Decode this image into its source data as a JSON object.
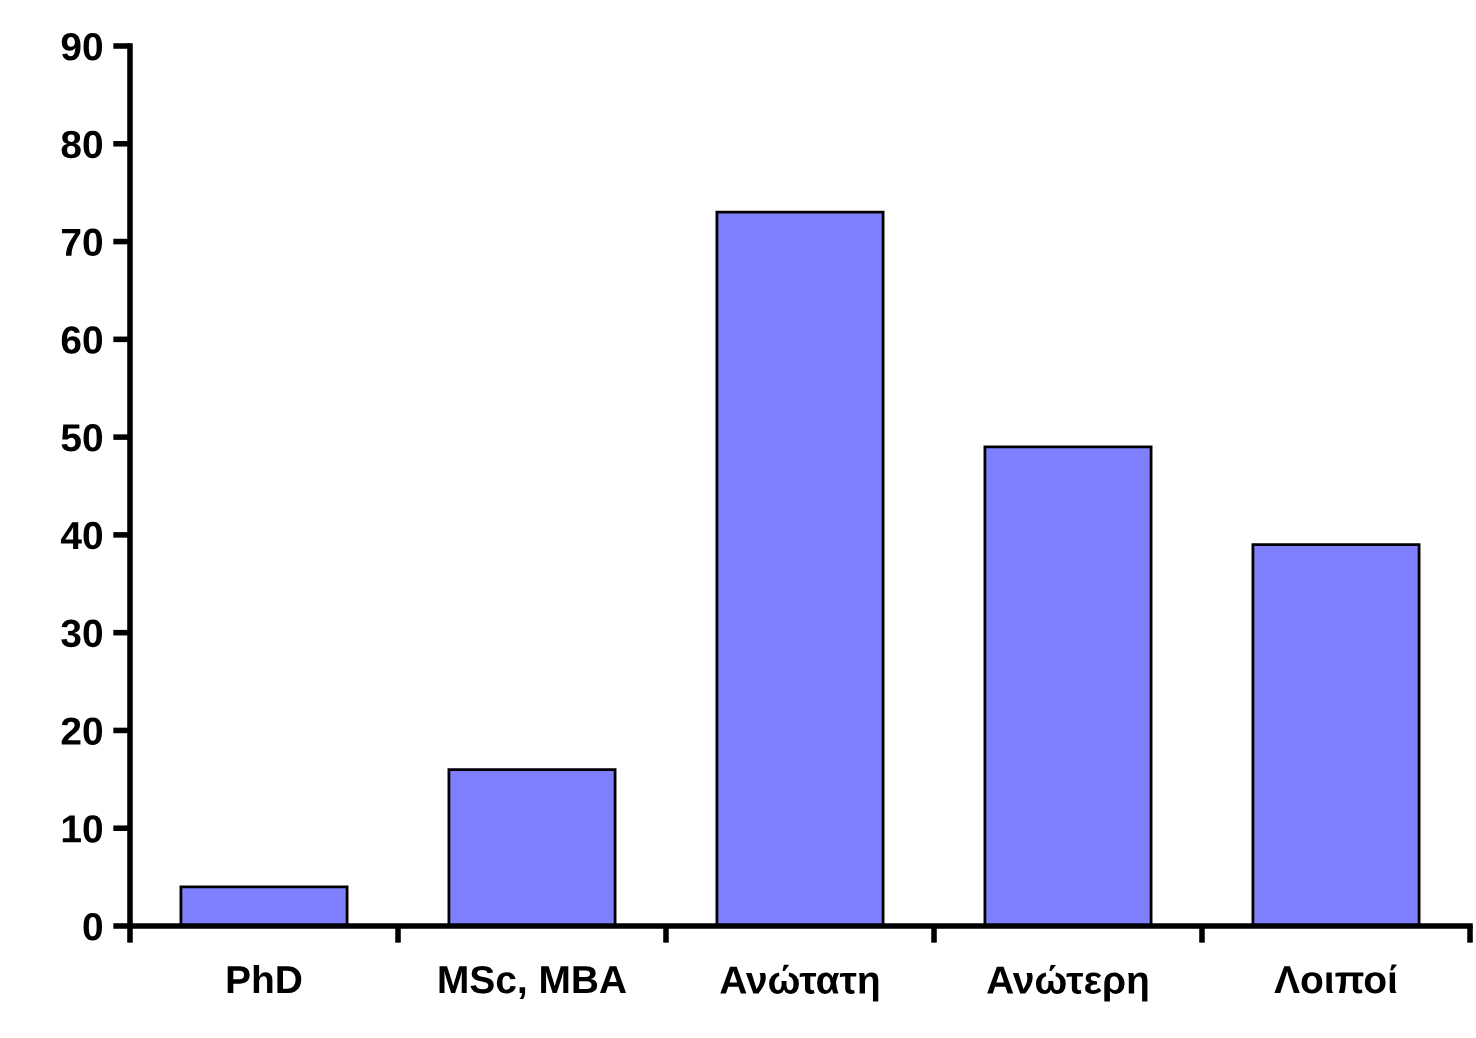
{
  "chart_data": {
    "type": "bar",
    "categories": [
      "PhD",
      "MSc, MBA",
      "Ανώτατη",
      "Ανώτερη",
      "Λοιποί"
    ],
    "values": [
      4,
      16,
      73,
      49,
      39
    ],
    "color": "#8080ff",
    "ylim": [
      0,
      90
    ],
    "yticks": [
      0,
      10,
      20,
      30,
      40,
      50,
      60,
      70,
      80,
      90
    ],
    "grid": false,
    "legend": false
  }
}
